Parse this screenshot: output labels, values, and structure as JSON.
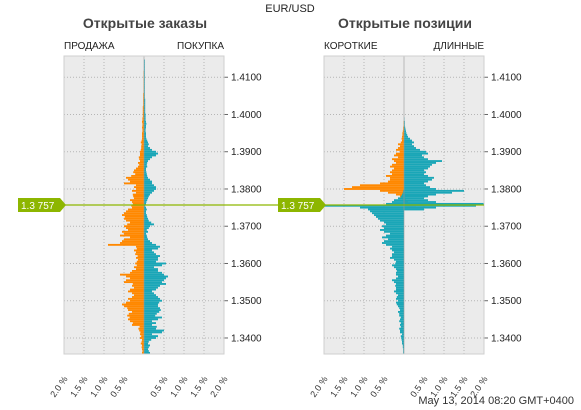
{
  "header": {
    "pair": "EUR/USD",
    "timestamp": "May 13, 2014 08:20 GMT+0400"
  },
  "price": {
    "current": 1.3757,
    "label": "1.3 757"
  },
  "colors": {
    "orange": "#ff8800",
    "teal": "#1aa6b7",
    "price_line": "#8db600",
    "panel_bg": "#ebebeb",
    "grid": "#b5b5b5"
  },
  "chart_data": [
    {
      "type": "bar",
      "title": "Открытые заказы",
      "left_label": "ПРОДАЖА",
      "right_label": "ПОКУПКА",
      "ylim": [
        1.3357,
        1.4157
      ],
      "yticks": [
        1.34,
        1.35,
        1.36,
        1.37,
        1.38,
        1.39,
        1.4,
        1.41
      ],
      "ytick_labels": [
        "1.3400",
        "1.3500",
        "1.3600",
        "1.3700",
        "1.3800",
        "1.3900",
        "1.4000",
        "1.4100"
      ],
      "xlim": [
        -2.0,
        2.0
      ],
      "xticks": [
        -2.0,
        -1.5,
        -1.0,
        -0.5,
        0.5,
        1.0,
        1.5,
        2.0
      ],
      "xtick_labels": [
        "2.0 %",
        "1.5 %",
        "1.0 %",
        "0.5 %",
        "0.5 %",
        "1.0 %",
        "1.5 %",
        "2.0 %"
      ],
      "bin_step": 0.0005,
      "price_start": 1.336,
      "series": [
        {
          "side": "left",
          "color": "orange",
          "values": [
            0.05,
            0.04,
            0.05,
            0.06,
            0.05,
            0.08,
            0.06,
            0.05,
            0.1,
            0.07,
            0.1,
            0.09,
            0.12,
            0.14,
            0.11,
            0.3,
            0.28,
            0.35,
            0.4,
            0.36,
            0.42,
            0.38,
            0.3,
            0.4,
            0.42,
            0.5,
            0.55,
            0.45,
            0.35,
            0.4,
            0.3,
            0.25,
            0.3,
            0.4,
            0.35,
            0.25,
            0.3,
            0.28,
            0.5,
            0.45,
            0.35,
            0.45,
            0.6,
            0.35,
            0.3,
            0.2,
            0.25,
            0.18,
            0.22,
            0.18,
            0.15,
            0.2,
            0.16,
            0.22,
            0.2,
            0.25,
            0.18,
            0.2,
            0.9,
            0.6,
            0.55,
            0.5,
            0.35,
            0.6,
            0.5,
            0.55,
            0.4,
            0.45,
            0.5,
            0.42,
            0.35,
            0.45,
            0.5,
            0.48,
            0.55,
            0.5,
            0.45,
            0.4,
            0.3,
            0.32,
            0.28,
            0.3,
            0.35,
            0.25,
            0.27,
            0.28,
            0.2,
            0.3,
            0.2,
            0.25,
            0.2,
            0.5,
            0.35,
            0.4,
            0.45,
            0.32,
            0.22,
            0.27,
            0.25,
            0.2,
            0.15,
            0.12,
            0.15,
            0.1,
            0.12,
            0.13,
            0.1,
            0.1,
            0.1,
            0.08,
            0.07,
            0.07,
            0.06,
            0.08,
            0.06,
            0.05,
            0.05,
            0.05,
            0.05,
            0.04,
            0.04,
            0.05,
            0.04,
            0.04,
            0.05,
            0.04,
            0.04,
            0.03,
            0.03,
            0.03,
            0.03,
            0.03,
            0.03,
            0.02,
            0.02,
            0.02,
            0.02,
            0.02,
            0.02,
            0.02,
            0.01,
            0.01,
            0.01,
            0.01,
            0.01,
            0.01,
            0.01,
            0.01,
            0.01,
            0.01,
            0.01,
            0.01
          ]
        },
        {
          "side": "right",
          "color": "teal",
          "values": [
            0.15,
            0.12,
            0.1,
            0.12,
            0.15,
            0.1,
            0.12,
            0.18,
            0.3,
            0.35,
            0.2,
            0.45,
            0.5,
            0.3,
            0.32,
            0.2,
            0.3,
            0.2,
            0.35,
            0.45,
            0.28,
            0.32,
            0.38,
            0.42,
            0.4,
            0.35,
            0.35,
            0.38,
            0.45,
            0.4,
            0.35,
            0.3,
            0.25,
            0.2,
            0.3,
            0.35,
            0.4,
            0.55,
            0.45,
            0.5,
            0.55,
            0.6,
            0.5,
            0.45,
            0.35,
            0.35,
            0.25,
            0.45,
            0.55,
            0.3,
            0.35,
            0.35,
            0.4,
            0.3,
            0.25,
            0.2,
            0.35,
            0.4,
            0.3,
            0.2,
            0.15,
            0.1,
            0.08,
            0.07,
            0.05,
            0.1,
            0.07,
            0.12,
            0.15,
            0.25,
            0.18,
            0.12,
            0.1,
            0.08,
            0.07,
            0.05,
            0.05,
            0.07,
            0.05,
            0.03,
            0.05,
            0.06,
            0.08,
            0.1,
            0.12,
            0.15,
            0.2,
            0.25,
            0.3,
            0.3,
            0.25,
            0.2,
            0.2,
            0.15,
            0.1,
            0.08,
            0.07,
            0.06,
            0.05,
            0.05,
            0.08,
            0.07,
            0.08,
            0.1,
            0.15,
            0.2,
            0.3,
            0.35,
            0.3,
            0.2,
            0.15,
            0.1,
            0.12,
            0.1,
            0.08,
            0.06,
            0.05,
            0.05,
            0.05,
            0.04,
            0.04,
            0.05,
            0.05,
            0.06,
            0.05,
            0.04,
            0.04,
            0.04,
            0.04,
            0.03,
            0.03,
            0.03,
            0.03,
            0.03,
            0.03,
            0.03,
            0.03,
            0.02,
            0.02,
            0.02,
            0.02,
            0.02,
            0.02,
            0.02,
            0.02,
            0.02,
            0.02,
            0.02,
            0.02,
            0.02,
            0.02,
            0.02,
            0.02,
            0.02,
            0.02,
            0.02,
            0.02,
            0.02
          ]
        }
      ]
    },
    {
      "type": "bar",
      "title": "Открытые позиции",
      "left_label": "КОРОТКИЕ",
      "right_label": "ДЛИННЫЕ",
      "ylim": [
        1.3357,
        1.4157
      ],
      "yticks": [
        1.34,
        1.35,
        1.36,
        1.37,
        1.38,
        1.39,
        1.4,
        1.41
      ],
      "ytick_labels": [
        "1.3400",
        "1.3500",
        "1.3600",
        "1.3700",
        "1.3800",
        "1.3900",
        "1.4000",
        "1.4100"
      ],
      "xlim": [
        -2.0,
        2.0
      ],
      "xticks": [
        -2.0,
        -1.5,
        -1.0,
        -0.5,
        0.5,
        1.0,
        1.5,
        2.0
      ],
      "xtick_labels": [
        "2.0 %",
        "1.5 %",
        "1.0 %",
        "0.5 %",
        "0.5 %",
        "1.0 %",
        "1.5 %",
        "2.0 %"
      ],
      "bin_step": 0.0005,
      "price_start": 1.336,
      "series": [
        {
          "side": "left",
          "color": "orange",
          "values": [
            0,
            0,
            0,
            0,
            0,
            0,
            0,
            0,
            0,
            0,
            0,
            0,
            0,
            0,
            0,
            0,
            0,
            0,
            0,
            0,
            0,
            0,
            0,
            0,
            0,
            0,
            0,
            0,
            0,
            0,
            0,
            0,
            0,
            0,
            0,
            0,
            0,
            0,
            0,
            0,
            0,
            0,
            0,
            0,
            0,
            0,
            0,
            0,
            0,
            0,
            0,
            0,
            0,
            0,
            0,
            0,
            0,
            0,
            0,
            0,
            0,
            0,
            0,
            0,
            0,
            0,
            0,
            0,
            0,
            0,
            0,
            0,
            0,
            0,
            0,
            0,
            0,
            0,
            0,
            0,
            0.01,
            0.02,
            0.02,
            0.05,
            0.1,
            0.2,
            0.4,
            0.6,
            1.5,
            1.3,
            1.1,
            0.6,
            0.4,
            0.35,
            0.35,
            0.45,
            0.3,
            0.35,
            0.3,
            0.25,
            0.35,
            0.3,
            0.2,
            0.25,
            0.3,
            0.15,
            0.25,
            0.2,
            0.1,
            0.2,
            0.15,
            0.1,
            0.15,
            0.08,
            0.05,
            0.06,
            0.05,
            0.04,
            0.04,
            0.03,
            0.02,
            0.02,
            0.01,
            0.01,
            0.01,
            0,
            0,
            0,
            0,
            0,
            0,
            0,
            0,
            0,
            0,
            0,
            0,
            0,
            0,
            0,
            0,
            0,
            0,
            0,
            0,
            0,
            0,
            0,
            0,
            0,
            0,
            0,
            0,
            0,
            0,
            0
          ]
        },
        {
          "side": "left",
          "color": "teal",
          "values": [
            0.02,
            0.02,
            0.02,
            0.03,
            0.03,
            0.05,
            0.05,
            0.06,
            0.07,
            0.08,
            0.05,
            0.1,
            0.1,
            0.12,
            0.08,
            0.1,
            0.08,
            0.12,
            0.1,
            0.08,
            0.12,
            0.12,
            0.15,
            0.1,
            0.12,
            0.15,
            0.18,
            0.2,
            0.15,
            0.2,
            0.18,
            0.15,
            0.2,
            0.25,
            0.2,
            0.2,
            0.22,
            0.2,
            0.25,
            0.3,
            0.2,
            0.15,
            0.2,
            0.2,
            0.18,
            0.2,
            0.25,
            0.3,
            0.22,
            0.2,
            0.25,
            0.35,
            0.3,
            0.3,
            0.25,
            0.3,
            0.35,
            0.3,
            0.45,
            0.55,
            0.5,
            0.4,
            0.55,
            0.45,
            0.35,
            0.5,
            0.6,
            0.5,
            0.55,
            0.45,
            0.5,
            0.6,
            0.65,
            0.7,
            0.75,
            0.8,
            0.85,
            0.9,
            1.1,
            2.0,
            0.45,
            0.3,
            0.25,
            0.15,
            0.08,
            0.05,
            0.03,
            0.02,
            0,
            0,
            0,
            0,
            0,
            0,
            0,
            0,
            0,
            0,
            0,
            0,
            0,
            0,
            0,
            0,
            0,
            0,
            0,
            0,
            0,
            0,
            0,
            0,
            0,
            0,
            0,
            0,
            0,
            0,
            0,
            0,
            0,
            0,
            0,
            0,
            0,
            0,
            0,
            0,
            0,
            0,
            0,
            0,
            0,
            0,
            0,
            0,
            0,
            0,
            0,
            0,
            0,
            0,
            0,
            0,
            0,
            0,
            0,
            0,
            0,
            0,
            0,
            0,
            0,
            0,
            0,
            0
          ]
        },
        {
          "side": "right",
          "color": "orange",
          "values": [
            0,
            0,
            0,
            0,
            0,
            0,
            0,
            0,
            0,
            0,
            0,
            0,
            0,
            0,
            0,
            0,
            0,
            0,
            0,
            0,
            0,
            0,
            0,
            0,
            0,
            0,
            0,
            0,
            0,
            0,
            0,
            0,
            0,
            0,
            0,
            0,
            0,
            0,
            0,
            0,
            0,
            0,
            0,
            0,
            0,
            0,
            0,
            0,
            0,
            0,
            0,
            0,
            0,
            0,
            0,
            0,
            0,
            0,
            0,
            0,
            0,
            0,
            0,
            0,
            0,
            0,
            0,
            0,
            0,
            0,
            0,
            0,
            0,
            0,
            0,
            0,
            0,
            0,
            0,
            0.3,
            0.15,
            0.1,
            0.05,
            0.04,
            0.03,
            0.02,
            0.01,
            0.01,
            0,
            0,
            0,
            0,
            0,
            0,
            0,
            0,
            0,
            0,
            0,
            0,
            0,
            0,
            0,
            0,
            0,
            0,
            0,
            0,
            0,
            0,
            0,
            0,
            0,
            0,
            0,
            0,
            0,
            0,
            0,
            0,
            0,
            0,
            0,
            0,
            0,
            0,
            0,
            0,
            0,
            0,
            0,
            0,
            0,
            0,
            0,
            0,
            0,
            0,
            0,
            0,
            0,
            0,
            0,
            0,
            0,
            0,
            0,
            0,
            0,
            0
          ]
        },
        {
          "side": "right",
          "color": "teal",
          "values": [
            0,
            0,
            0,
            0,
            0,
            0,
            0,
            0,
            0,
            0,
            0,
            0,
            0,
            0,
            0,
            0,
            0,
            0,
            0,
            0,
            0,
            0,
            0,
            0,
            0,
            0,
            0,
            0,
            0,
            0,
            0,
            0,
            0,
            0,
            0,
            0,
            0,
            0,
            0,
            0,
            0,
            0,
            0,
            0,
            0,
            0,
            0,
            0,
            0,
            0,
            0,
            0,
            0,
            0,
            0,
            0,
            0,
            0,
            0,
            0,
            0,
            0,
            0,
            0,
            0,
            0,
            0,
            0,
            0,
            0,
            0,
            0,
            0,
            0,
            0,
            0,
            0,
            0.5,
            0.8,
            1.8,
            2.0,
            0.8,
            0.6,
            0.5,
            0.6,
            0.8,
            1.2,
            1.5,
            0.8,
            0.65,
            0.55,
            0.5,
            0.6,
            0.7,
            0.75,
            0.6,
            0.5,
            0.55,
            0.5,
            0.6,
            0.65,
            0.7,
            0.8,
            0.95,
            0.6,
            0.5,
            0.45,
            0.6,
            0.55,
            0.4,
            0.3,
            0.25,
            0.2,
            0.25,
            0.2,
            0.15,
            0.1,
            0.08,
            0.06,
            0.05,
            0.04,
            0.03,
            0.02,
            0.02,
            0.02,
            0.01,
            0.01,
            0,
            0,
            0,
            0,
            0,
            0,
            0,
            0,
            0,
            0,
            0,
            0,
            0,
            0,
            0,
            0,
            0,
            0,
            0,
            0,
            0,
            0,
            0,
            0,
            0,
            0,
            0,
            0,
            0,
            0,
            0,
            0
          ]
        }
      ]
    }
  ]
}
